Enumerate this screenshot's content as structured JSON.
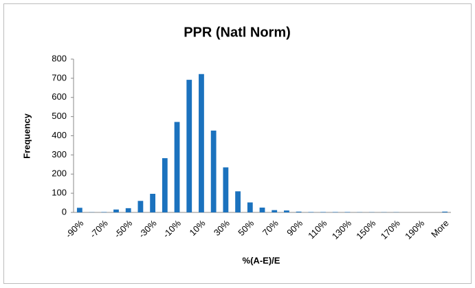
{
  "chart_data": {
    "type": "bar",
    "title": "PPR (Natl Norm)",
    "x_label": "%(A-E)/E",
    "y_label": "Frequency",
    "categories": [
      "-90%",
      null,
      "-70%",
      null,
      "-50%",
      null,
      "-30%",
      null,
      "-10%",
      null,
      "10%",
      null,
      "30%",
      null,
      "50%",
      null,
      "70%",
      null,
      "90%",
      null,
      "110%",
      null,
      "130%",
      null,
      "150%",
      null,
      "170%",
      null,
      "190%",
      null,
      "More"
    ],
    "values": [
      24,
      1,
      2,
      15,
      22,
      60,
      97,
      283,
      472,
      692,
      722,
      427,
      235,
      110,
      52,
      25,
      12,
      10,
      4,
      2,
      2,
      2,
      2,
      1,
      1,
      1,
      1,
      0,
      0,
      0,
      4
    ],
    "color": "#1b72be",
    "ylim": [
      0,
      800
    ],
    "yticks": [
      0,
      100,
      200,
      300,
      400,
      500,
      600,
      700,
      800
    ],
    "grid": false
  }
}
